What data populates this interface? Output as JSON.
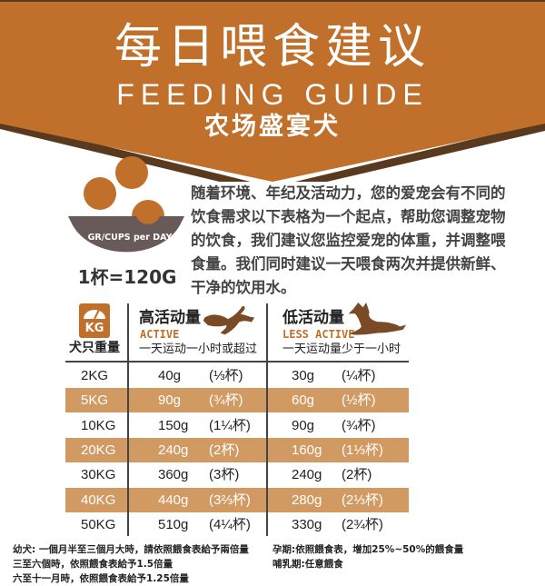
{
  "header": {
    "title_cn": "每日喂食建议",
    "title_en": "FEEDING GUIDE",
    "product": "农场盛宴犬",
    "color": "#c0702b",
    "shadow": "#5a3a1e"
  },
  "intro": {
    "bowl_label": "GR/CUPS per DAY",
    "cup_equiv": "1杯=120G",
    "lines": [
      "随着环境、年纪及活动力，您的爱宠会有不同的",
      "饮食需求以下表格为一个起点，帮助您调整宠物",
      "的饮食，我们建议您监控爱宠的体重，并调整喂",
      "食量。我们同时建议一天喂食两次并提供新鲜、",
      "干净的饮用水。"
    ]
  },
  "table": {
    "weight_icon": "KG",
    "weight_header": "犬只重量",
    "active": {
      "title": "高活动量",
      "en": "ACTIVE",
      "desc": "一天运动一小时或超过",
      "icon": "running-dog-icon"
    },
    "less": {
      "title": "低活动量",
      "en": "LESS ACTIVE",
      "desc": "一天运动量少于一小时",
      "icon": "lying-dog-icon"
    },
    "stripe_color": "#d29a63",
    "rows": [
      {
        "w": "2KG",
        "ag": "40g",
        "ac": "(⅓杯)",
        "lg": "30g",
        "lc": "(¼杯)"
      },
      {
        "w": "5KG",
        "ag": "90g",
        "ac": "(¾杯)",
        "lg": "60g",
        "lc": "(½杯)"
      },
      {
        "w": "10KG",
        "ag": "150g",
        "ac": "(1¼杯)",
        "lg": "90g",
        "lc": "(¾杯)"
      },
      {
        "w": "20KG",
        "ag": "240g",
        "ac": "(2杯)",
        "lg": "160g",
        "lc": "(1⅓杯)"
      },
      {
        "w": "30KG",
        "ag": "360g",
        "ac": "(3杯)",
        "lg": "240g",
        "lc": "(2杯)"
      },
      {
        "w": "40KG",
        "ag": "440g",
        "ac": "(3⅔杯)",
        "lg": "280g",
        "lc": "(2⅓杯)"
      },
      {
        "w": "50KG",
        "ag": "510g",
        "ac": "(4¼杯)",
        "lg": "330g",
        "lc": "(2¾杯)"
      }
    ]
  },
  "footer": {
    "left": [
      "幼犬: 一個月半至三個月大時，請依照餵食表給予兩倍量",
      "三至六個時，依照餵食表給予1.5倍量",
      "六至十一月時，依照餵食表給予1.25倍量"
    ],
    "right": [
      "孕期:依照餵食表，增加25%~50%的餵食量",
      "哺乳期:任意餵食"
    ]
  }
}
